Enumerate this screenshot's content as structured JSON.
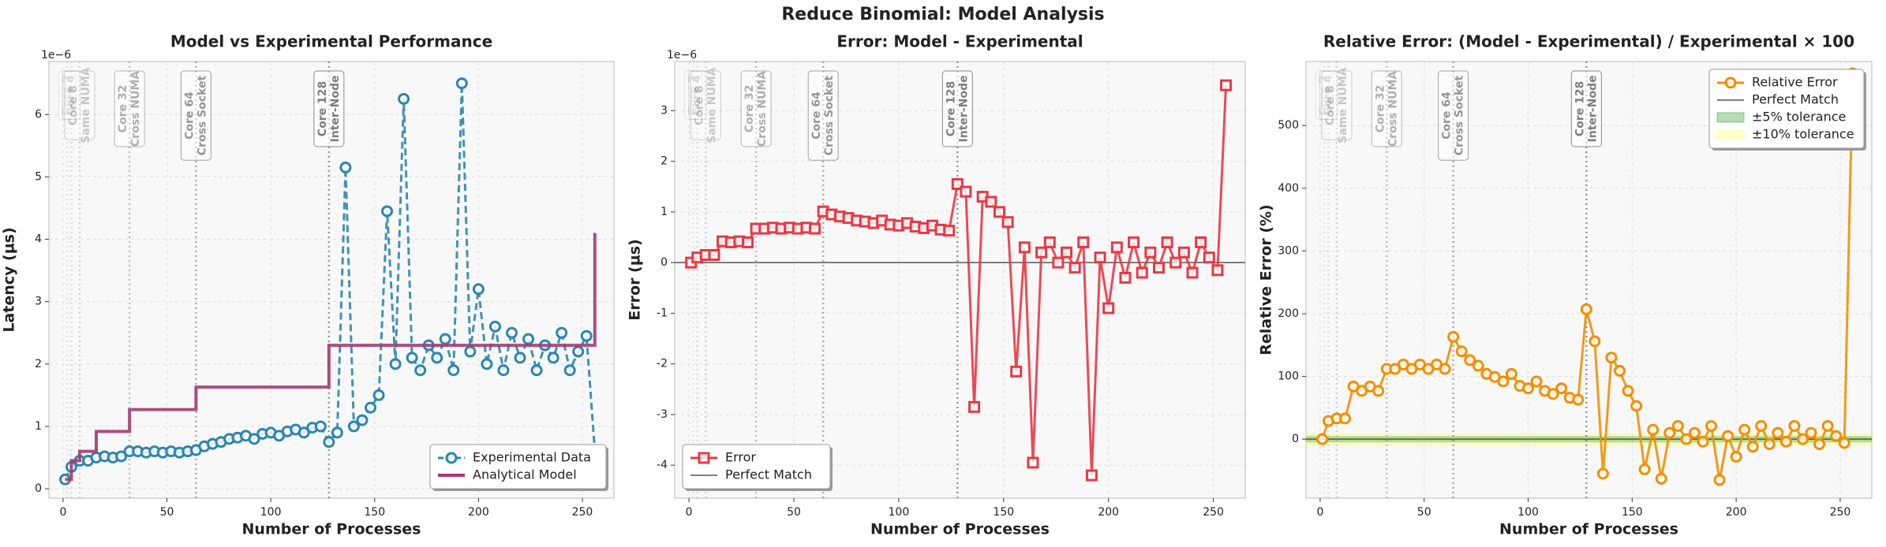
{
  "title": "Reduce Binomial: Model Analysis",
  "chart_data": [
    {
      "type": "line",
      "title": "Model vs Experimental Performance",
      "xlabel": "Number of Processes",
      "ylabel": "Latency (µs)",
      "offset_text": "1e−6",
      "xlim": [
        -6.8,
        265.2
      ],
      "ylim": [
        -0.15,
        6.85
      ],
      "xticks": [
        0,
        50,
        100,
        150,
        200,
        250
      ],
      "yticks": [
        0,
        1,
        2,
        3,
        4,
        5,
        6
      ],
      "grid": true,
      "legend": "lower right",
      "x": [
        1,
        4,
        8,
        12,
        16,
        20,
        24,
        28,
        32,
        36,
        40,
        44,
        48,
        52,
        56,
        60,
        64,
        68,
        72,
        76,
        80,
        84,
        88,
        92,
        96,
        100,
        104,
        108,
        112,
        116,
        120,
        124,
        128,
        132,
        136,
        140,
        144,
        148,
        152,
        156,
        160,
        164,
        168,
        172,
        176,
        180,
        184,
        188,
        192,
        196,
        200,
        204,
        208,
        212,
        216,
        220,
        224,
        228,
        232,
        236,
        240,
        244,
        248,
        252,
        256
      ],
      "annotations": [
        {
          "x": 2,
          "lines": [
            "Core 2"
          ]
        },
        {
          "x": 4,
          "lines": [
            "Core 4"
          ]
        },
        {
          "x": 8,
          "lines": [
            "Core 8",
            "Same NUMA"
          ]
        },
        {
          "x": 32,
          "lines": [
            "Core 32",
            "Cross NUMA"
          ]
        },
        {
          "x": 64,
          "lines": [
            "Core 64",
            "Cross Socket"
          ]
        },
        {
          "x": 128,
          "lines": [
            "Core 128",
            "Inter-Node"
          ]
        }
      ],
      "series": [
        {
          "name": "Experimental Data",
          "color": "#2e86ab",
          "dash": true,
          "marker": "circle",
          "values": [
            0.15,
            0.35,
            0.45,
            0.45,
            0.5,
            0.52,
            0.5,
            0.52,
            0.6,
            0.6,
            0.58,
            0.6,
            0.58,
            0.6,
            0.58,
            0.6,
            0.62,
            0.68,
            0.72,
            0.75,
            0.8,
            0.82,
            0.85,
            0.8,
            0.88,
            0.9,
            0.85,
            0.92,
            0.95,
            0.9,
            0.98,
            1.0,
            0.75,
            0.9,
            5.15,
            1.0,
            1.1,
            1.3,
            1.5,
            4.45,
            2.0,
            6.25,
            2.1,
            1.9,
            2.3,
            2.1,
            2.4,
            1.9,
            6.5,
            2.2,
            3.2,
            2.0,
            2.6,
            1.9,
            2.5,
            2.1,
            2.4,
            1.9,
            2.3,
            2.1,
            2.5,
            1.9,
            2.2,
            2.45,
            0.6
          ]
        },
        {
          "name": "Analytical Model",
          "color": "#a23b72",
          "steps": true,
          "values": [
            0.15,
            0.45,
            0.6,
            0.6,
            0.92,
            0.92,
            0.92,
            0.92,
            1.27,
            1.27,
            1.27,
            1.27,
            1.27,
            1.27,
            1.27,
            1.27,
            1.63,
            1.63,
            1.63,
            1.63,
            1.63,
            1.63,
            1.63,
            1.63,
            1.63,
            1.63,
            1.63,
            1.63,
            1.63,
            1.63,
            1.63,
            1.63,
            2.3,
            2.3,
            2.3,
            2.3,
            2.3,
            2.3,
            2.3,
            2.3,
            2.3,
            2.3,
            2.3,
            2.3,
            2.3,
            2.3,
            2.3,
            2.3,
            2.3,
            2.3,
            2.3,
            2.3,
            2.3,
            2.3,
            2.3,
            2.3,
            2.3,
            2.3,
            2.3,
            2.3,
            2.3,
            2.3,
            2.3,
            2.3,
            4.1
          ]
        }
      ]
    },
    {
      "type": "line",
      "title": "Error: Model - Experimental",
      "xlabel": "Number of Processes",
      "ylabel": "Error (µs)",
      "offset_text": "1e−6",
      "xlim": [
        -6.8,
        265.2
      ],
      "ylim": [
        -4.65,
        3.97
      ],
      "xticks": [
        0,
        50,
        100,
        150,
        200,
        250
      ],
      "yticks": [
        -4,
        -3,
        -2,
        -1,
        0,
        1,
        2,
        3
      ],
      "grid": true,
      "legend": "lower left",
      "reference": {
        "name": "Perfect Match",
        "value": 0
      },
      "x": [
        1,
        4,
        8,
        12,
        16,
        20,
        24,
        28,
        32,
        36,
        40,
        44,
        48,
        52,
        56,
        60,
        64,
        68,
        72,
        76,
        80,
        84,
        88,
        92,
        96,
        100,
        104,
        108,
        112,
        116,
        120,
        124,
        128,
        132,
        136,
        140,
        144,
        148,
        152,
        156,
        160,
        164,
        168,
        172,
        176,
        180,
        184,
        188,
        192,
        196,
        200,
        204,
        208,
        212,
        216,
        220,
        224,
        228,
        232,
        236,
        240,
        244,
        248,
        252,
        256
      ],
      "annotations": [
        {
          "x": 2,
          "lines": [
            "Core 2"
          ]
        },
        {
          "x": 4,
          "lines": [
            "Core 4"
          ]
        },
        {
          "x": 8,
          "lines": [
            "Core 8",
            "Same NUMA"
          ]
        },
        {
          "x": 32,
          "lines": [
            "Core 32",
            "Cross NUMA"
          ]
        },
        {
          "x": 64,
          "lines": [
            "Core 64",
            "Cross Socket"
          ]
        },
        {
          "x": 128,
          "lines": [
            "Core 128",
            "Inter-Node"
          ]
        }
      ],
      "series": [
        {
          "name": "Error",
          "color": "#e63946",
          "marker": "square",
          "values": [
            0,
            0.1,
            0.15,
            0.15,
            0.42,
            0.4,
            0.42,
            0.4,
            0.67,
            0.67,
            0.69,
            0.67,
            0.69,
            0.67,
            0.69,
            0.67,
            1.01,
            0.95,
            0.91,
            0.88,
            0.83,
            0.81,
            0.78,
            0.83,
            0.75,
            0.73,
            0.78,
            0.71,
            0.68,
            0.73,
            0.65,
            0.63,
            1.55,
            1.4,
            -2.85,
            1.3,
            1.2,
            1.0,
            0.8,
            -2.15,
            0.3,
            -3.95,
            0.2,
            0.4,
            0,
            0.2,
            -0.1,
            0.4,
            -4.2,
            0.1,
            -0.9,
            0.3,
            -0.3,
            0.4,
            -0.2,
            0.2,
            -0.1,
            0.4,
            0,
            0.2,
            -0.2,
            0.4,
            0.1,
            -0.15,
            3.5
          ]
        }
      ]
    },
    {
      "type": "line",
      "title": "Relative Error: (Model - Experimental) / Experimental × 100",
      "xlabel": "Number of Processes",
      "ylabel": "Relative Error (%)",
      "xlim": [
        -6.8,
        265.2
      ],
      "ylim": [
        -94,
        602
      ],
      "xticks": [
        0,
        50,
        100,
        150,
        200,
        250
      ],
      "yticks": [
        0,
        100,
        200,
        300,
        400,
        500
      ],
      "grid": true,
      "legend": "upper right",
      "reference": {
        "name": "Perfect Match",
        "value": 0
      },
      "bands": [
        {
          "name": "±5% tolerance",
          "range": [
            -5,
            5
          ],
          "color": "#2ca02c"
        },
        {
          "name": "±10% tolerance",
          "range": [
            -10,
            10
          ],
          "color": "#ffff66"
        }
      ],
      "x": [
        1,
        4,
        8,
        12,
        16,
        20,
        24,
        28,
        32,
        36,
        40,
        44,
        48,
        52,
        56,
        60,
        64,
        68,
        72,
        76,
        80,
        84,
        88,
        92,
        96,
        100,
        104,
        108,
        112,
        116,
        120,
        124,
        128,
        132,
        136,
        140,
        144,
        148,
        152,
        156,
        160,
        164,
        168,
        172,
        176,
        180,
        184,
        188,
        192,
        196,
        200,
        204,
        208,
        212,
        216,
        220,
        224,
        228,
        232,
        236,
        240,
        244,
        248,
        252,
        256
      ],
      "annotations": [
        {
          "x": 2,
          "lines": [
            "Core 2"
          ]
        },
        {
          "x": 4,
          "lines": [
            "Core 4"
          ]
        },
        {
          "x": 8,
          "lines": [
            "Core 8",
            "Same NUMA"
          ]
        },
        {
          "x": 32,
          "lines": [
            "Core 32",
            "Cross NUMA"
          ]
        },
        {
          "x": 64,
          "lines": [
            "Core 64",
            "Cross Socket"
          ]
        },
        {
          "x": 128,
          "lines": [
            "Core 128",
            "Inter-Node"
          ]
        }
      ],
      "series": [
        {
          "name": "Relative Error",
          "color": "#f18f01",
          "marker": "circle",
          "values": [
            0,
            29,
            33,
            33,
            84,
            77,
            84,
            77,
            112,
            112,
            119,
            112,
            119,
            112,
            119,
            112,
            163,
            140,
            126,
            117,
            104,
            99,
            92,
            104,
            85,
            81,
            92,
            77,
            72,
            81,
            66,
            63,
            207,
            156,
            -55,
            130,
            109,
            77,
            53,
            -48,
            15,
            -63,
            10,
            21,
            0,
            10,
            -4,
            21,
            -65,
            5,
            -28,
            15,
            -12,
            21,
            -8,
            10,
            -4,
            21,
            0,
            10,
            -8,
            21,
            5,
            -6,
            583
          ]
        }
      ]
    }
  ]
}
